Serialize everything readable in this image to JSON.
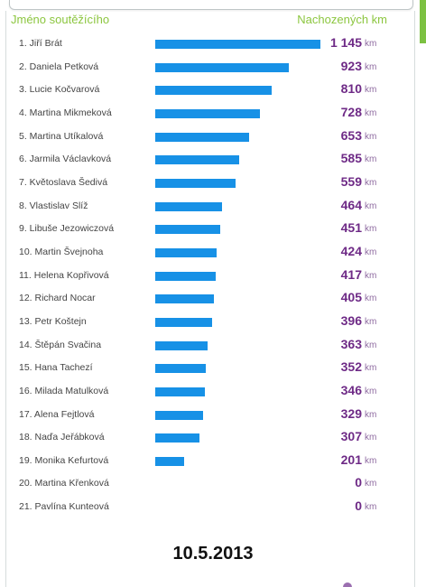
{
  "header": {
    "name_col": "Jméno soutěžícího",
    "km_col": "Nachozených km"
  },
  "unit": "km",
  "date": "10.5.2013",
  "colors": {
    "header_green": "#8cc63f",
    "bar_blue": "#1791e6",
    "value_purple": "#6e2a86",
    "accent_green_tab": "#7cc142"
  },
  "chart_data": {
    "type": "bar",
    "orientation": "horizontal",
    "categories": [
      "1. Jiří Brát",
      "2. Daniela Petková",
      "3. Lucie Kočvarová",
      "4. Martina Mikmeková",
      "5. Martina Utíkalová",
      "6. Jarmila Václavková",
      "7. Květoslava Šedivá",
      "8. Vlastislav Slíž",
      "9. Libuše Jezowiczová",
      "10. Martin Švejnoha",
      "11. Helena Kopřivová",
      "12. Richard Nocar",
      "13. Petr Koštejn",
      "14. Štěpán Svačina",
      "15. Hana Tachezí",
      "16. Milada Matulková",
      "17. Alena Fejtlová",
      "18. Naďa Jeřábková",
      "19. Monika Kefurtová",
      "20. Martina Křenková",
      "21. Pavlína Kunteová"
    ],
    "values": [
      1145,
      923,
      810,
      728,
      653,
      585,
      559,
      464,
      451,
      424,
      417,
      405,
      396,
      363,
      352,
      346,
      329,
      307,
      201,
      0,
      0
    ],
    "value_labels": [
      "1 145",
      "923",
      "810",
      "728",
      "653",
      "585",
      "559",
      "464",
      "451",
      "424",
      "417",
      "405",
      "396",
      "363",
      "352",
      "346",
      "329",
      "307",
      "201",
      "0",
      "0"
    ],
    "xlim": [
      0,
      1145
    ]
  }
}
